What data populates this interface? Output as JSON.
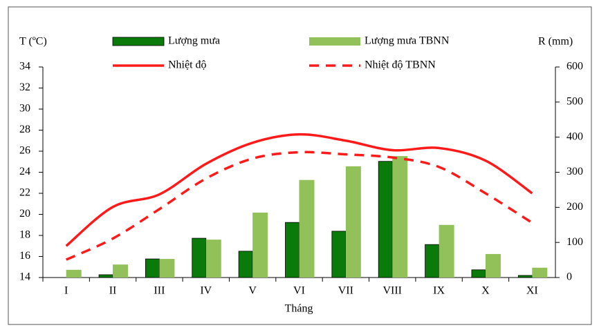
{
  "chart_data": {
    "type": "bar-line",
    "y_label": "T (ºC)",
    "y2_label": "R (mm)",
    "x_label": "Tháng",
    "categories": [
      "I",
      "II",
      "III",
      "IV",
      "V",
      "VI",
      "VII",
      "VIII",
      "IX",
      "X",
      "XI"
    ],
    "series": [
      {
        "name": "Lượng mưa",
        "type": "bar",
        "axis": "y2",
        "color": "#0a7a0a",
        "values": [
          0,
          8,
          53,
          112,
          75,
          157,
          132,
          331,
          94,
          22,
          6
        ]
      },
      {
        "name": "Lượng mưa TBNN",
        "type": "bar",
        "axis": "y2",
        "color": "#92c15a",
        "values": [
          22,
          37,
          53,
          108,
          185,
          278,
          317,
          346,
          150,
          67,
          28
        ]
      },
      {
        "name": "Nhiệt độ",
        "type": "line",
        "axis": "y",
        "color": "#ff1a1a",
        "style": "solid",
        "values": [
          17.0,
          20.7,
          21.9,
          24.8,
          26.8,
          27.6,
          27.0,
          26.1,
          26.3,
          25.1,
          22.0
        ]
      },
      {
        "name": "Nhiệt độ TBNN",
        "type": "line",
        "axis": "y",
        "color": "#ff1a1a",
        "style": "dashed",
        "values": [
          15.7,
          17.7,
          20.5,
          23.4,
          25.3,
          25.9,
          25.7,
          25.4,
          24.5,
          22.0,
          19.2
        ]
      }
    ],
    "ylim": [
      14,
      34
    ],
    "yticks": [
      14,
      16,
      18,
      20,
      22,
      24,
      26,
      28,
      30,
      32,
      34
    ],
    "y2lim": [
      0,
      600
    ],
    "y2ticks": [
      0,
      100,
      200,
      300,
      400,
      500,
      600
    ]
  }
}
